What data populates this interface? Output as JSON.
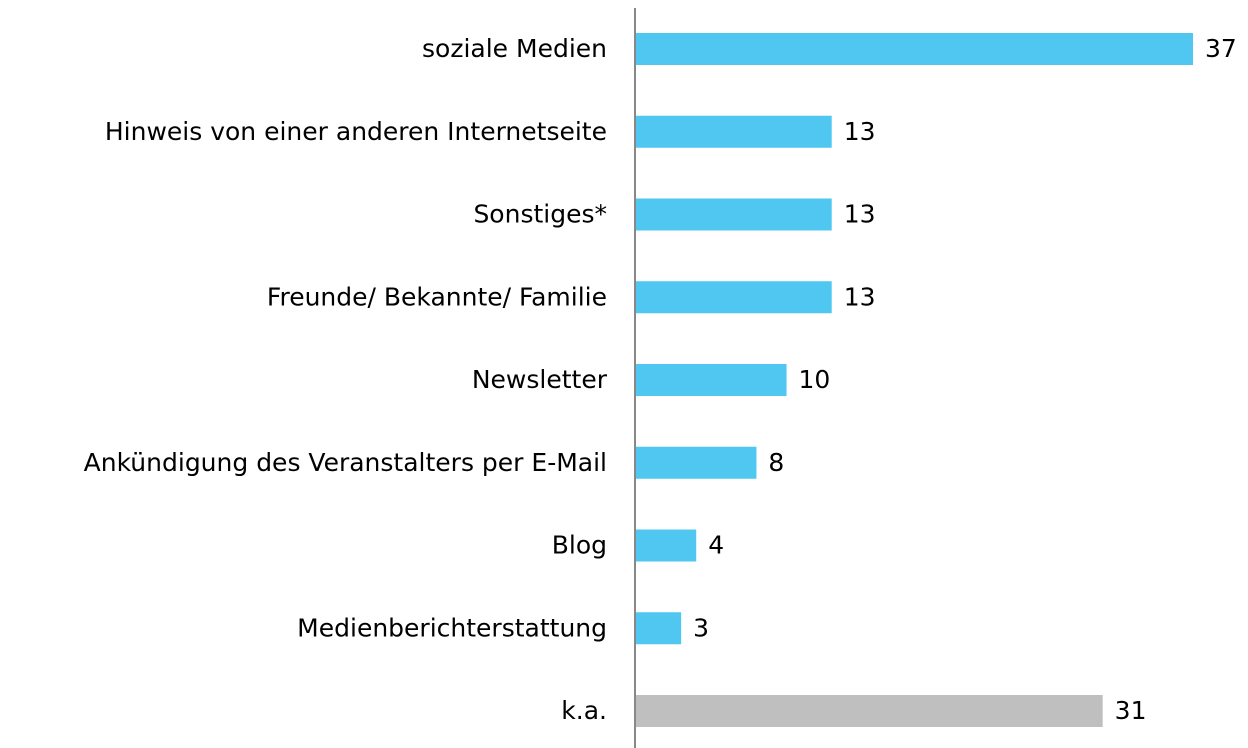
{
  "chart_data": {
    "type": "barh",
    "categories": [
      "soziale Medien",
      "Hinweis von einer anderen Internetseite",
      "Sonstiges*",
      "Freunde/ Bekannte/ Familie",
      "Newsletter",
      "Ankündigung des Veranstalters per E-Mail",
      "Blog",
      "Medienberichterstattung",
      "k.a."
    ],
    "values": [
      37,
      13,
      13,
      13,
      10,
      8,
      4,
      3,
      31
    ],
    "colors": [
      "#4fc7f0",
      "#4fc7f0",
      "#4fc7f0",
      "#4fc7f0",
      "#4fc7f0",
      "#4fc7f0",
      "#4fc7f0",
      "#4fc7f0",
      "#bfbfbf"
    ]
  }
}
